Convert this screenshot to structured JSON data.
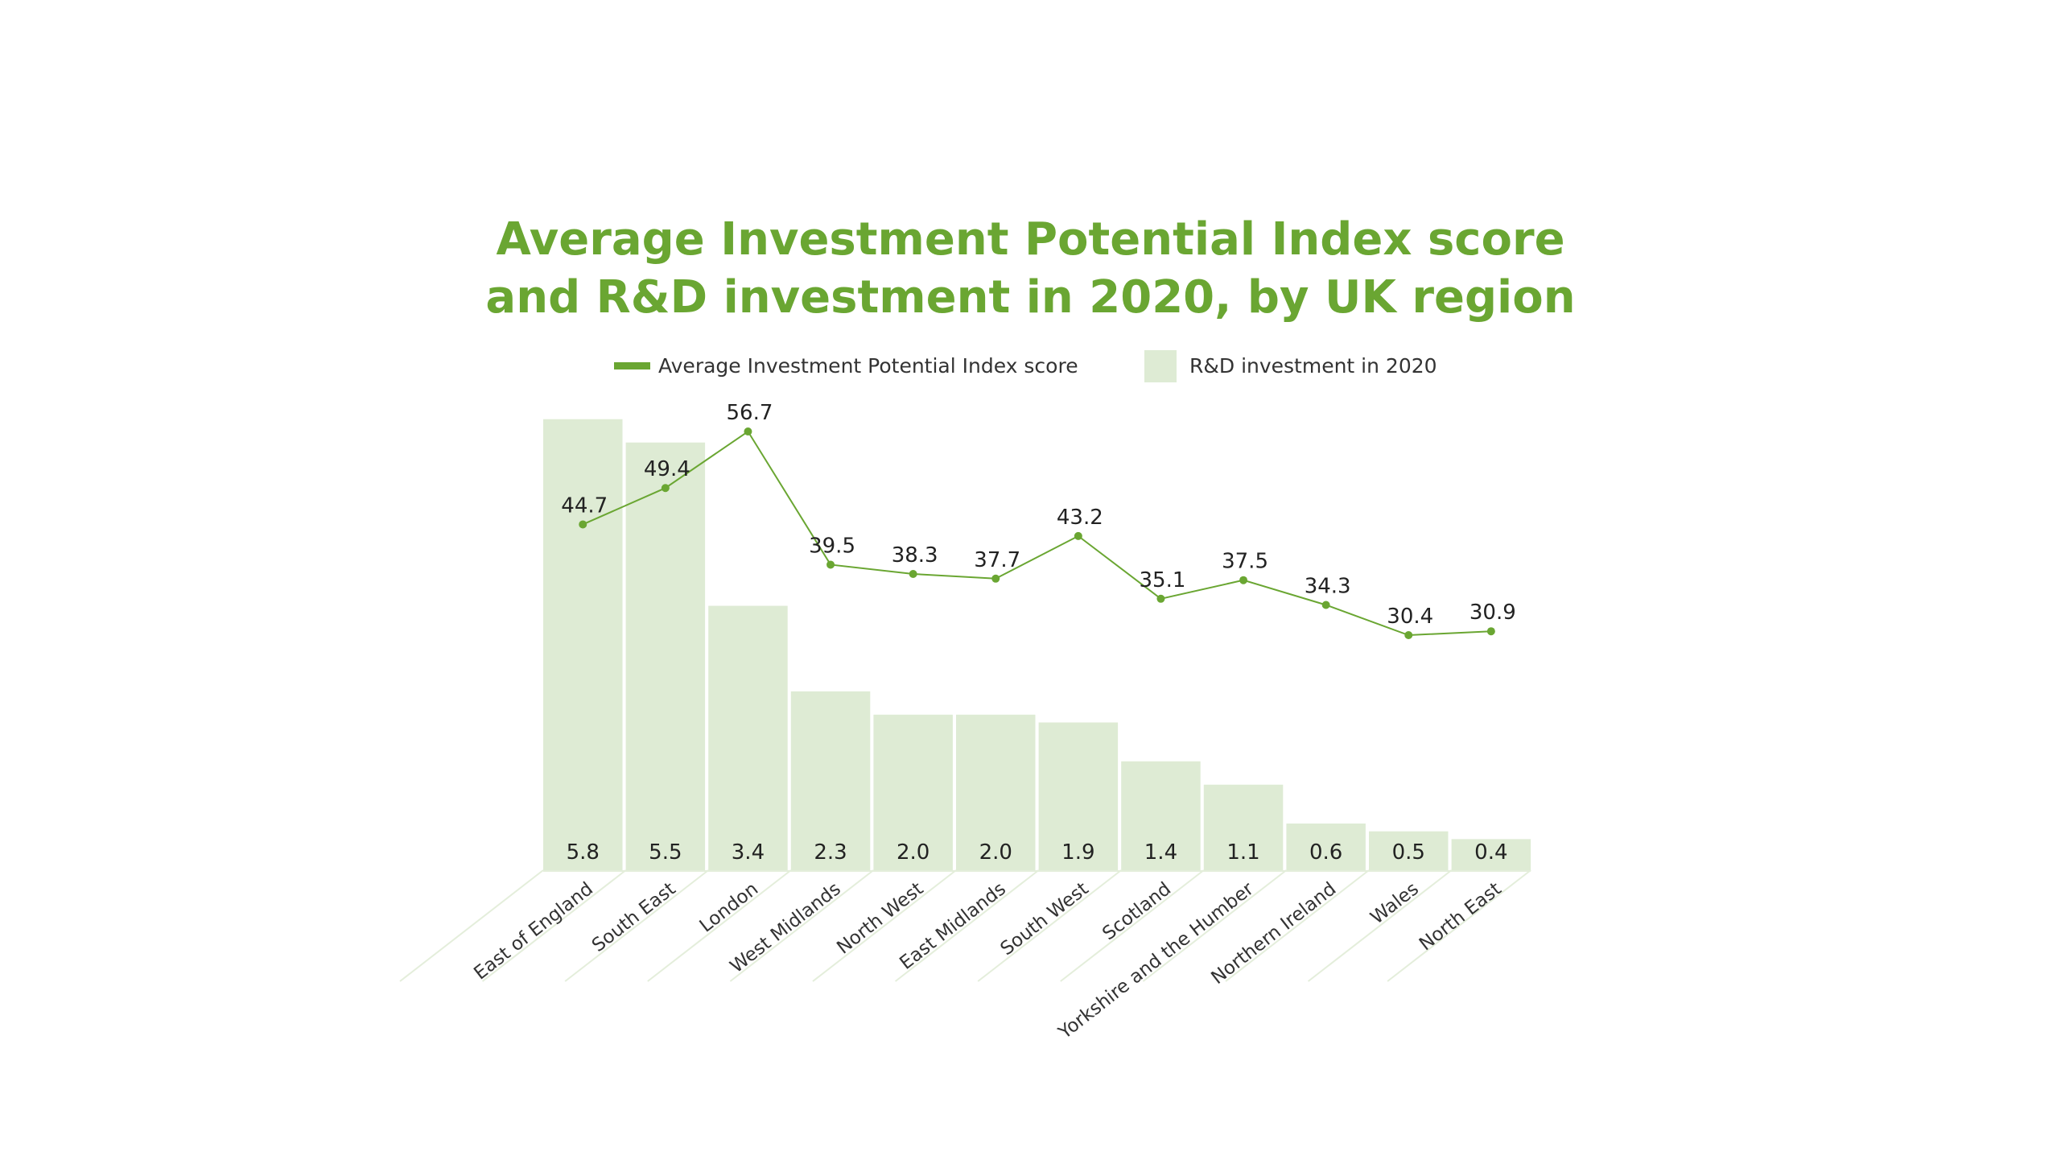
{
  "title": {
    "line1": "Average Investment Potential Index score",
    "line2": "and R&D investment in 2020, by UK region"
  },
  "legend": {
    "line_label": "Average Investment Potential Index score",
    "bar_label": "R&D investment in 2020"
  },
  "colors": {
    "title": "#6aa632",
    "line": "#6aa632",
    "bar": "#deebd4",
    "text": "#222222",
    "divider": "#e4eedb"
  },
  "chart_data": {
    "type": "bar+line",
    "title": "Average Investment Potential Index score and R&D investment in 2020, by UK region",
    "xlabel": "",
    "ylabel": "",
    "grid": false,
    "legend_position": "top",
    "categories": [
      "East of England",
      "South East",
      "London",
      "West Midlands",
      "North West",
      "East Midlands",
      "South West",
      "Scotland",
      "Yorkshire and the Humber",
      "Northern Ireland",
      "Wales",
      "North East"
    ],
    "series": [
      {
        "name": "R&D investment in 2020",
        "type": "bar",
        "values": [
          5.8,
          5.5,
          3.4,
          2.3,
          2.0,
          2.0,
          1.9,
          1.4,
          1.1,
          0.6,
          0.5,
          0.4
        ]
      },
      {
        "name": "Average Investment Potential Index score",
        "type": "line",
        "values": [
          44.7,
          49.4,
          56.7,
          39.5,
          38.3,
          37.7,
          43.2,
          35.1,
          37.5,
          34.3,
          30.4,
          30.9
        ]
      }
    ],
    "bar_labels": [
      "5.8",
      "5.5",
      "3.4",
      "2.3",
      "2.0",
      "2.0",
      "1.9",
      "1.4",
      "1.1",
      "0.6",
      "0.5",
      "0.4"
    ],
    "line_labels": [
      "44.7",
      "49.4",
      "56.7",
      "39.5",
      "38.3",
      "37.7",
      "43.2",
      "35.1",
      "37.5",
      "34.3",
      "30.4",
      "30.9"
    ]
  }
}
